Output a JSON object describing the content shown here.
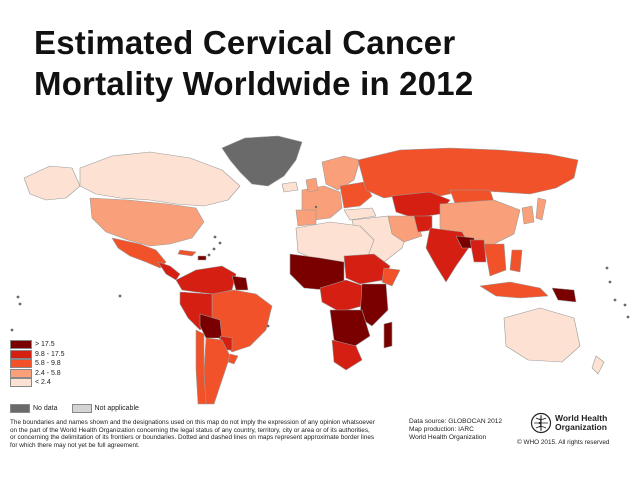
{
  "title": {
    "line1": "Estimated Cervical Cancer",
    "line2": "Mortality Worldwide in 2012"
  },
  "legend": {
    "items": [
      {
        "label": "> 17.5",
        "color": "#7a0000"
      },
      {
        "label": "9.8  -  17.5",
        "color": "#d41f12"
      },
      {
        "label": "5.8  -  9.8",
        "color": "#f2522a"
      },
      {
        "label": "2.4  -  5.8",
        "color": "#f9a07a"
      },
      {
        "label": "< 2.4",
        "color": "#fde2d3"
      }
    ],
    "no_data": {
      "label": "No data",
      "color": "#6a6a6a"
    },
    "not_applicable": {
      "label": "Not applicable",
      "color": "#d4d4d4"
    }
  },
  "disclaimer": {
    "line1": "The boundaries and names shown and the designations used on this map do not imply the expression of any opinion whatsoever",
    "line2": "on the part of the World Health Organization concerning the legal status of any country, territory, city or area or of its authorities,",
    "line3": "or concerning the delimitation of its frontiers or boundaries. Dotted and dashed lines on maps represent approximate border lines",
    "line4": "for which there may not yet be full agreement."
  },
  "source": {
    "line1": "Data source: GLOBOCAN 2012",
    "line2": "Map production: IARC",
    "line3": "World Health Organization"
  },
  "who": {
    "line1": "World Health",
    "line2": "Organization",
    "logo": "who-emblem-icon"
  },
  "copyright": "© WHO 2015. All rights reserved",
  "colors": {
    "ocean": "#ffffff",
    "border": "#9a9a9a"
  }
}
